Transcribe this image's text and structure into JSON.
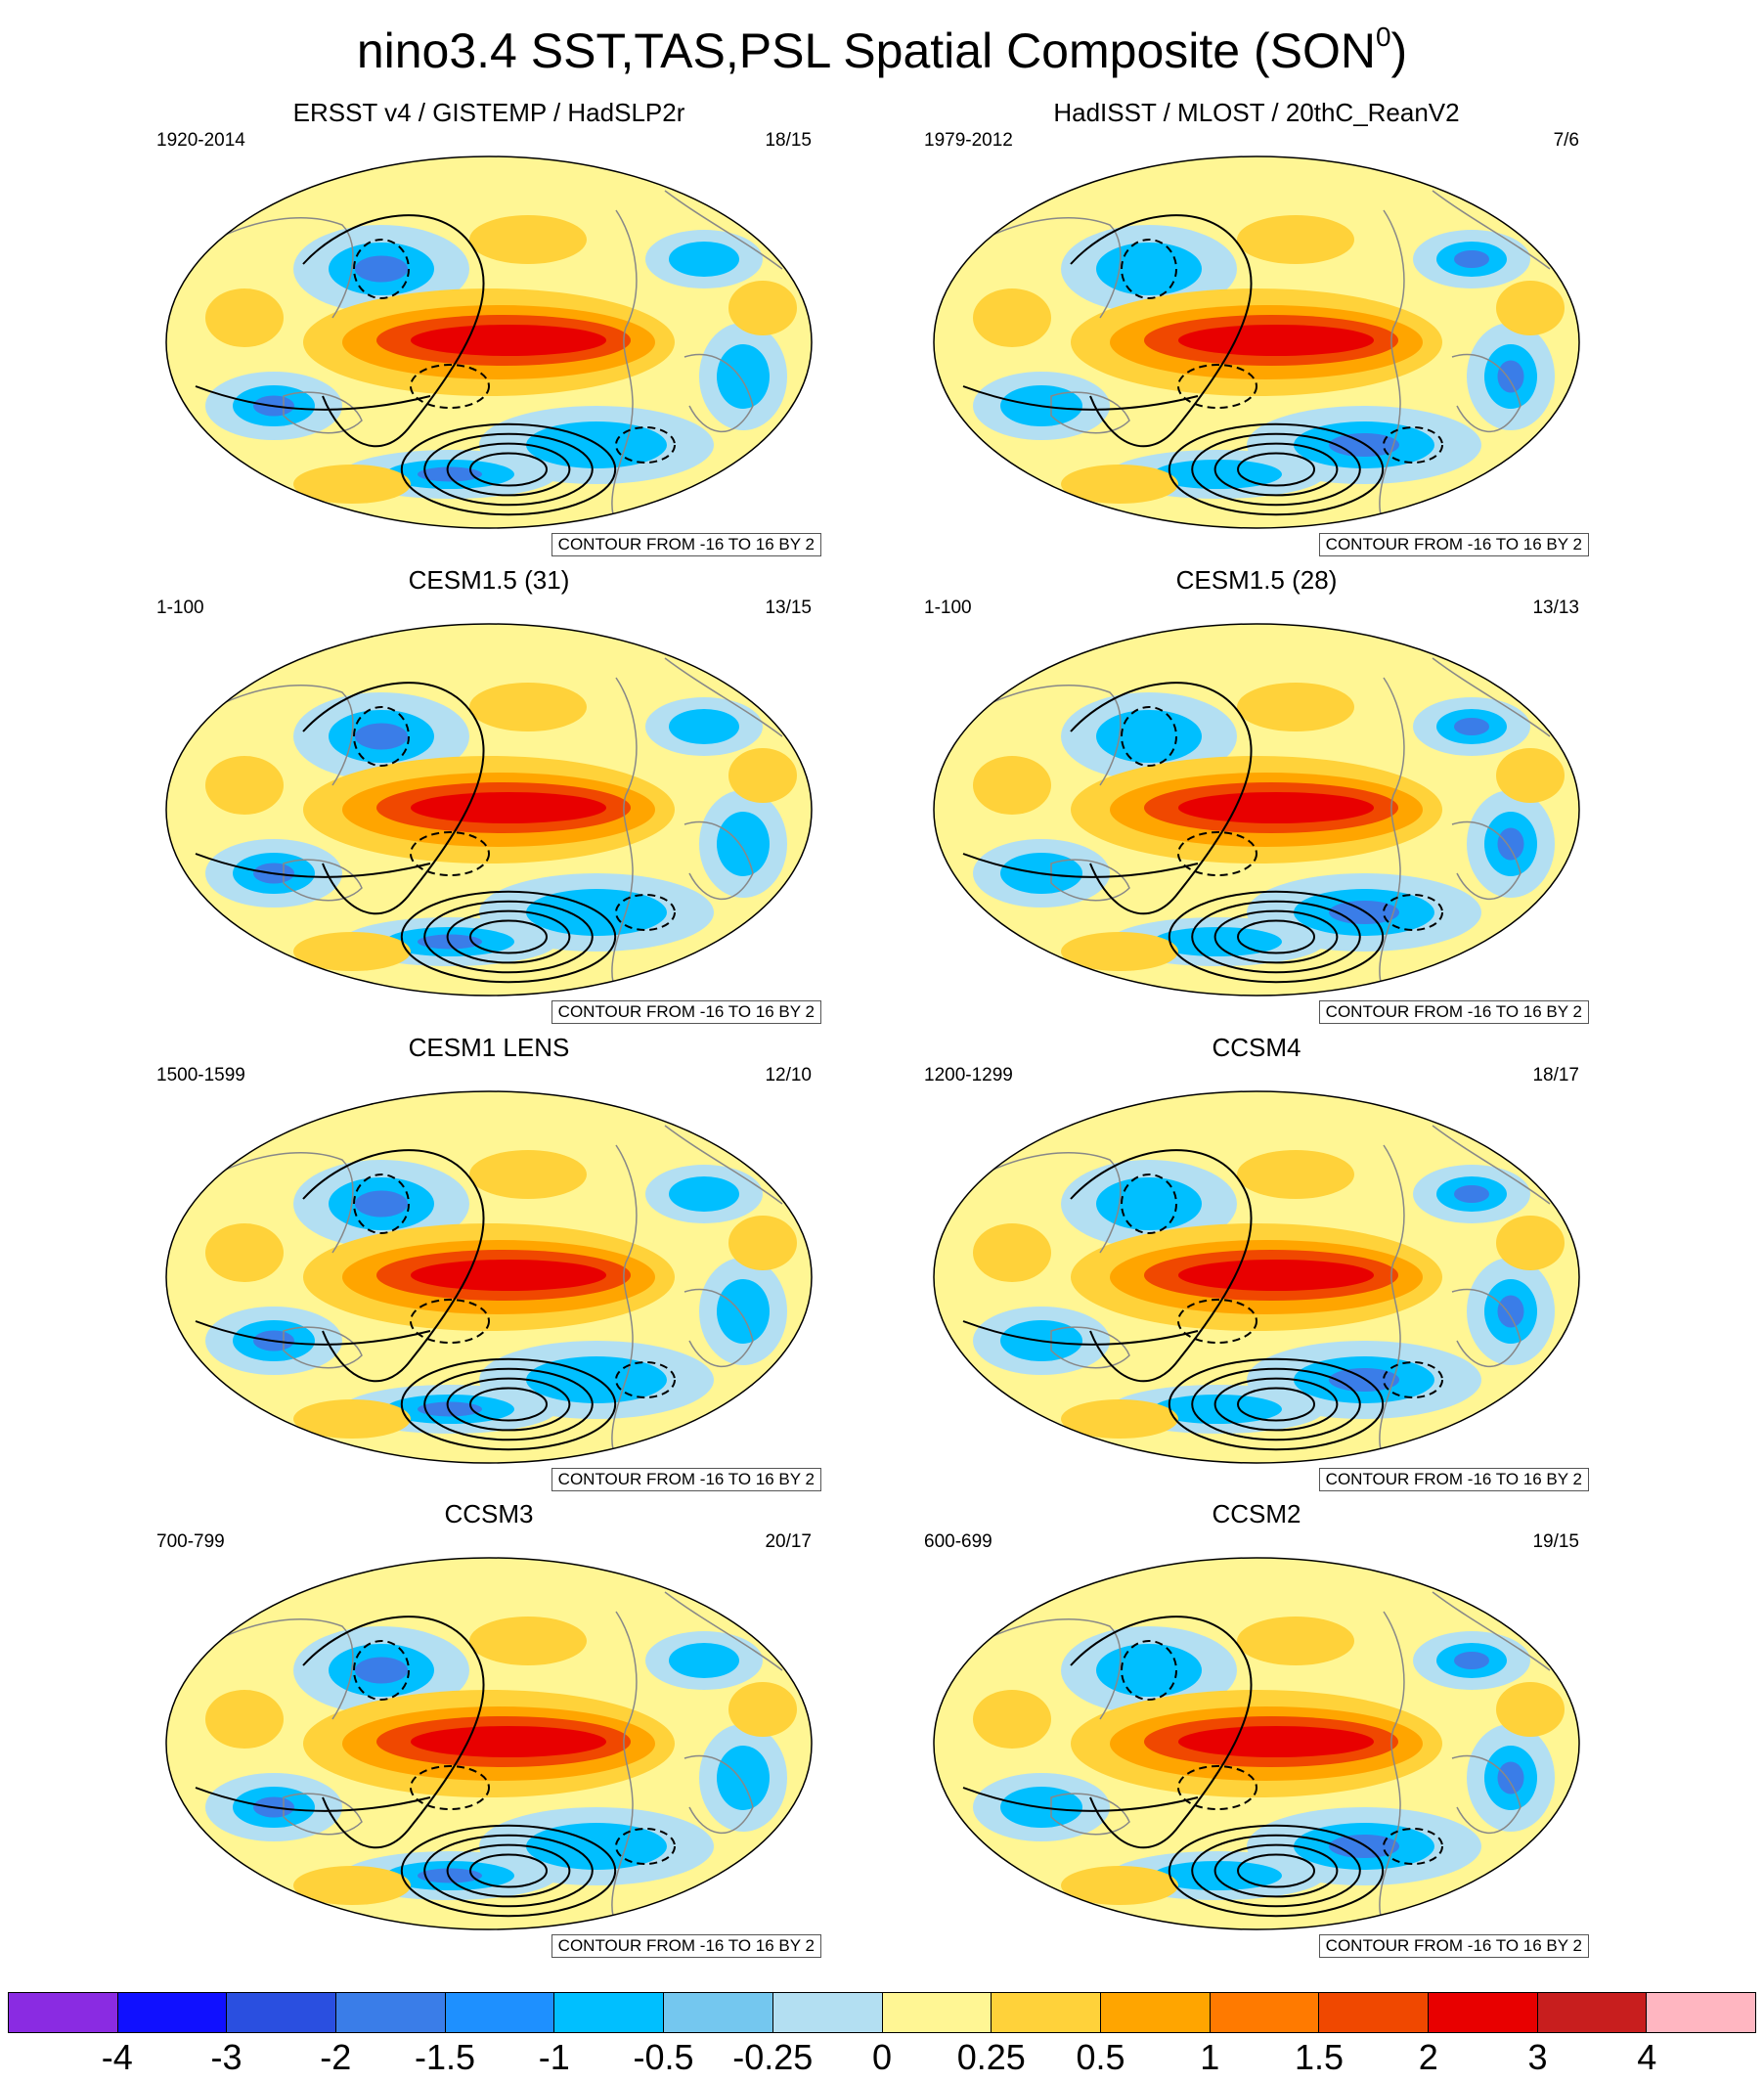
{
  "title": {
    "text": "nino3.4 SST,TAS,PSL Spatial Composite (SON",
    "superscript": "0",
    "suffix": ")"
  },
  "contour_note": "CONTOUR FROM -16 TO 16 BY 2",
  "panels": [
    {
      "title": "ERSST v4 / GISTEMP / HadSLP2r",
      "years": "1920-2014",
      "count": "18/15"
    },
    {
      "title": "HadISST / MLOST / 20thC_ReanV2",
      "years": "1979-2012",
      "count": "7/6"
    },
    {
      "title": "CESM1.5 (31)",
      "years": "1-100",
      "count": "13/15"
    },
    {
      "title": "CESM1.5 (28)",
      "years": "1-100",
      "count": "13/13"
    },
    {
      "title": "CESM1 LENS",
      "years": "1500-1599",
      "count": "12/10"
    },
    {
      "title": "CCSM4",
      "years": "1200-1299",
      "count": "18/17"
    },
    {
      "title": "CCSM3",
      "years": "700-799",
      "count": "20/17"
    },
    {
      "title": "CCSM2",
      "years": "600-699",
      "count": "19/15"
    }
  ],
  "colorbar": {
    "colors": [
      "#8a2be2",
      "#1010ff",
      "#2a4fe0",
      "#3a7de8",
      "#1e90ff",
      "#00bfff",
      "#74c7ef",
      "#b3dff2",
      "#fff694",
      "#ffd23a",
      "#ffa500",
      "#ff7a00",
      "#f04800",
      "#e80000",
      "#c81e1e",
      "#ffb6c1"
    ],
    "labels": [
      "-4",
      "-3",
      "-2",
      "-1.5",
      "-1",
      "-0.5",
      "-0.25",
      "0",
      "0.25",
      "0.5",
      "1",
      "1.5",
      "2",
      "3",
      "4"
    ]
  }
}
